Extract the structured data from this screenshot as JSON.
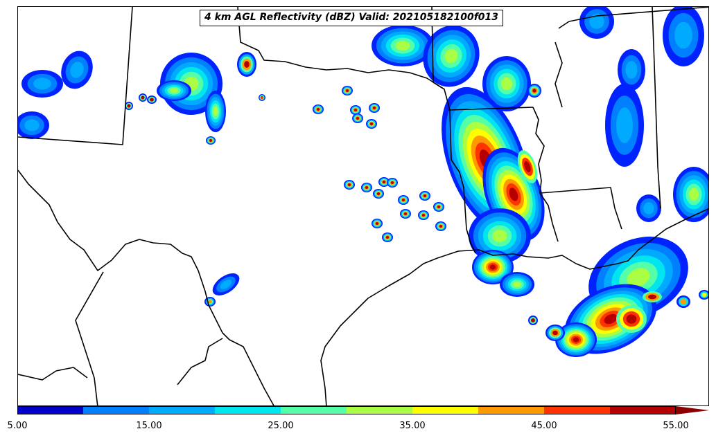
{
  "title": "4 km AGL Reflectivity (dBZ) Valid: 202105182100f013",
  "colorbar": {
    "tick_labels": [
      "5.00",
      "15.00",
      "25.00",
      "35.00",
      "45.00",
      "55.00"
    ],
    "bins": [
      5,
      10,
      15,
      20,
      25,
      30,
      35,
      40,
      45,
      50,
      55
    ],
    "colors": [
      "#0000c8",
      "#0022ff",
      "#0080ff",
      "#00aaff",
      "#00e5ee",
      "#55ffaa",
      "#aaff44",
      "#ffff00",
      "#ff9900",
      "#ff3300",
      "#b40000"
    ],
    "extend": "max",
    "extend_color": "#8b0000"
  },
  "map": {
    "region": "South-central United States and northeastern Mexico",
    "basemap": "state and country borders, coastline",
    "background": "#ffffff",
    "line_color": "#000000"
  }
}
